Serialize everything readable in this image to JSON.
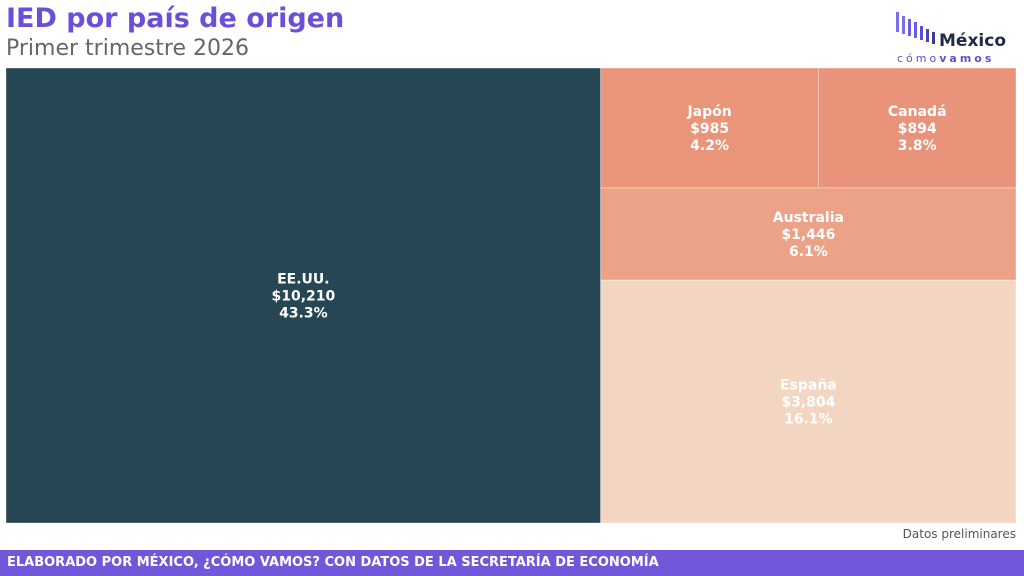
{
  "header": {
    "title": "IED por país de origen",
    "subtitle": "Primer trimestre 2026"
  },
  "logo": {
    "word1": "México",
    "word2a": "cómo",
    "word2b": "vamos"
  },
  "note": "Datos preliminares",
  "footer": {
    "text": "ELABORADO POR MÉXICO, ¿CÓMO VAMOS? CON DATOS DE LA SECRETARÍA DE ECONOMÍA"
  },
  "colors": {
    "title": "#6c4fd8",
    "footer_bg": "#7157d9",
    "logo_bars": "#6c5ce7"
  },
  "chart_data": {
    "type": "treemap",
    "nodes": [
      {
        "name": "EE.UU.",
        "value_label": "$10,210",
        "value": 10210,
        "share_label": "43.3%",
        "share": 43.3,
        "color": "#264653",
        "text_color": "#ffffff"
      },
      {
        "name": "Japón",
        "value_label": "$985",
        "value": 985,
        "share_label": "4.2%",
        "share": 4.2,
        "color": "#e8957a",
        "text_color": "#ffffff"
      },
      {
        "name": "Canadá",
        "value_label": "$894",
        "value": 894,
        "share_label": "3.8%",
        "share": 3.8,
        "color": "#e8937a",
        "text_color": "#ffffff"
      },
      {
        "name": "Australia",
        "value_label": "$1,446",
        "value": 1446,
        "share_label": "6.1%",
        "share": 6.1,
        "color": "#eba286",
        "text_color": "#ffffff"
      },
      {
        "name": "España",
        "value_label": "$3,804",
        "value": 3804,
        "share_label": "16.1%",
        "share": 16.1,
        "color": "#f2d6c1",
        "text_color": "#ffffff"
      }
    ]
  }
}
